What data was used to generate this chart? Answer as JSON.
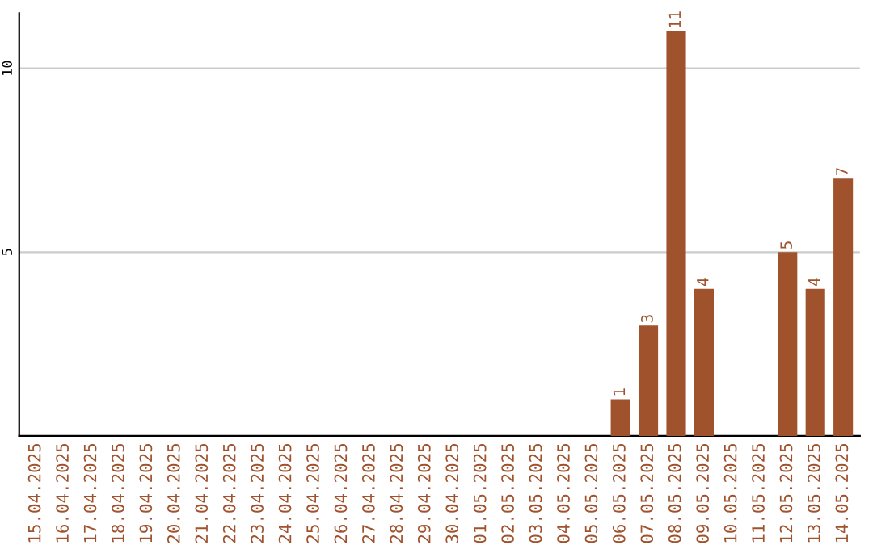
{
  "chart_data": {
    "type": "bar",
    "categories": [
      "15.04.2025",
      "16.04.2025",
      "17.04.2025",
      "18.04.2025",
      "19.04.2025",
      "20.04.2025",
      "21.04.2025",
      "22.04.2025",
      "23.04.2025",
      "24.04.2025",
      "25.04.2025",
      "26.04.2025",
      "27.04.2025",
      "28.04.2025",
      "29.04.2025",
      "30.04.2025",
      "01.05.2025",
      "02.05.2025",
      "03.05.2025",
      "04.05.2025",
      "05.05.2025",
      "06.05.2025",
      "07.05.2025",
      "08.05.2025",
      "09.05.2025",
      "10.05.2025",
      "11.05.2025",
      "12.05.2025",
      "13.05.2025",
      "14.05.2025"
    ],
    "series": [
      {
        "color": "#a0522d",
        "values": [
          0,
          0,
          0,
          0,
          0,
          0,
          0,
          0,
          0,
          0,
          0,
          0,
          0,
          0,
          0,
          0,
          0,
          0,
          0,
          0,
          0,
          1,
          3,
          11,
          4,
          0,
          0,
          5,
          4,
          7
        ],
        "value_labels": [
          null,
          null,
          null,
          null,
          null,
          null,
          null,
          null,
          null,
          null,
          null,
          null,
          null,
          null,
          null,
          null,
          null,
          null,
          null,
          null,
          null,
          "1",
          "3",
          "11",
          "4",
          null,
          null,
          "5",
          "4",
          "7"
        ]
      }
    ],
    "ylim": [
      0,
      11.5
    ],
    "yticks": [
      5,
      10
    ],
    "grid": "y",
    "legend": false
  }
}
